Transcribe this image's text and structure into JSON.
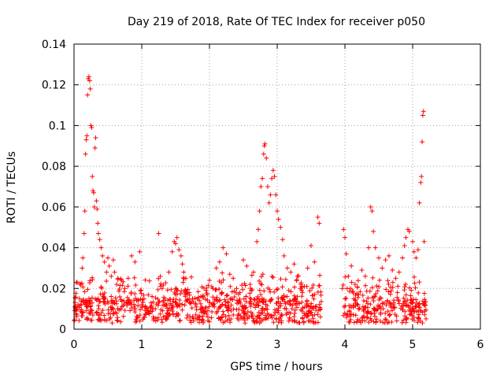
{
  "chart_data": {
    "type": "scatter",
    "title": "Day 219 of 2018, Rate Of TEC Index for receiver p050",
    "xlabel": "GPS time / hours",
    "ylabel": "ROTI / TECUs",
    "xlim": [
      0,
      6
    ],
    "ylim": [
      0,
      0.14
    ],
    "x_ticks": [
      0,
      1,
      2,
      3,
      4,
      5,
      6
    ],
    "x_tick_labels": [
      "0",
      "1",
      "2",
      "3",
      "4",
      "5",
      "6"
    ],
    "y_ticks": [
      0,
      0.02,
      0.04,
      0.06,
      0.08,
      0.1,
      0.12,
      0.14
    ],
    "y_tick_labels": [
      "0",
      "0.02",
      "0.04",
      "0.06",
      "0.08",
      "0.1",
      "0.12",
      "0.14"
    ],
    "grid": true,
    "marker": "+",
    "color": "#ff0000",
    "series": [
      {
        "name": "ROTI",
        "description_of_extent": "dense points from 0 to ~3.65 h and ~3.95 to ~5.2 h",
        "points": [
          [
            0.02,
            0.01
          ],
          [
            0.04,
            0.007
          ],
          [
            0.06,
            0.012
          ],
          [
            0.08,
            0.015
          ],
          [
            0.1,
            0.022
          ],
          [
            0.12,
            0.03
          ],
          [
            0.13,
            0.035
          ],
          [
            0.15,
            0.047
          ],
          [
            0.16,
            0.058
          ],
          [
            0.17,
            0.086
          ],
          [
            0.18,
            0.093
          ],
          [
            0.19,
            0.095
          ],
          [
            0.2,
            0.115
          ],
          [
            0.21,
            0.123
          ],
          [
            0.22,
            0.124
          ],
          [
            0.23,
            0.122
          ],
          [
            0.24,
            0.118
          ],
          [
            0.25,
            0.1
          ],
          [
            0.26,
            0.099
          ],
          [
            0.27,
            0.075
          ],
          [
            0.28,
            0.068
          ],
          [
            0.29,
            0.067
          ],
          [
            0.3,
            0.06
          ],
          [
            0.31,
            0.089
          ],
          [
            0.32,
            0.094
          ],
          [
            0.33,
            0.063
          ],
          [
            0.34,
            0.059
          ],
          [
            0.35,
            0.052
          ],
          [
            0.36,
            0.047
          ],
          [
            0.38,
            0.044
          ],
          [
            0.4,
            0.04
          ],
          [
            0.42,
            0.036
          ],
          [
            0.45,
            0.033
          ],
          [
            0.48,
            0.028
          ],
          [
            0.5,
            0.035
          ],
          [
            0.52,
            0.031
          ],
          [
            0.55,
            0.026
          ],
          [
            0.58,
            0.034
          ],
          [
            0.6,
            0.028
          ],
          [
            0.63,
            0.022
          ],
          [
            0.65,
            0.025
          ],
          [
            0.7,
            0.024
          ],
          [
            0.75,
            0.02
          ],
          [
            0.8,
            0.025
          ],
          [
            0.85,
            0.036
          ],
          [
            0.9,
            0.033
          ],
          [
            0.95,
            0.014
          ],
          [
            0.97,
            0.038
          ],
          [
            1.0,
            0.012
          ],
          [
            1.05,
            0.011
          ],
          [
            1.1,
            0.008
          ],
          [
            1.2,
            0.01
          ],
          [
            1.25,
            0.047
          ],
          [
            1.3,
            0.02
          ],
          [
            1.35,
            0.012
          ],
          [
            1.4,
            0.028
          ],
          [
            1.45,
            0.038
          ],
          [
            1.48,
            0.043
          ],
          [
            1.5,
            0.042
          ],
          [
            1.52,
            0.045
          ],
          [
            1.55,
            0.039
          ],
          [
            1.58,
            0.036
          ],
          [
            1.6,
            0.032
          ],
          [
            1.62,
            0.028
          ],
          [
            1.65,
            0.025
          ],
          [
            1.7,
            0.018
          ],
          [
            1.75,
            0.015
          ],
          [
            1.8,
            0.012
          ],
          [
            1.85,
            0.014
          ],
          [
            1.9,
            0.016
          ],
          [
            1.95,
            0.019
          ],
          [
            2.0,
            0.024
          ],
          [
            2.05,
            0.02
          ],
          [
            2.1,
            0.03
          ],
          [
            2.15,
            0.033
          ],
          [
            2.2,
            0.04
          ],
          [
            2.25,
            0.037
          ],
          [
            2.3,
            0.027
          ],
          [
            2.35,
            0.025
          ],
          [
            2.4,
            0.02
          ],
          [
            2.45,
            0.018
          ],
          [
            2.5,
            0.034
          ],
          [
            2.55,
            0.031
          ],
          [
            2.6,
            0.022
          ],
          [
            2.65,
            0.028
          ],
          [
            2.7,
            0.043
          ],
          [
            2.72,
            0.049
          ],
          [
            2.74,
            0.058
          ],
          [
            2.76,
            0.07
          ],
          [
            2.78,
            0.074
          ],
          [
            2.8,
            0.086
          ],
          [
            2.81,
            0.09
          ],
          [
            2.82,
            0.091
          ],
          [
            2.84,
            0.084
          ],
          [
            2.86,
            0.07
          ],
          [
            2.88,
            0.062
          ],
          [
            2.9,
            0.066
          ],
          [
            2.92,
            0.074
          ],
          [
            2.94,
            0.078
          ],
          [
            2.96,
            0.075
          ],
          [
            2.98,
            0.066
          ],
          [
            3.0,
            0.058
          ],
          [
            3.02,
            0.054
          ],
          [
            3.05,
            0.05
          ],
          [
            3.08,
            0.044
          ],
          [
            3.1,
            0.036
          ],
          [
            3.15,
            0.03
          ],
          [
            3.2,
            0.028
          ],
          [
            3.25,
            0.032
          ],
          [
            3.3,
            0.026
          ],
          [
            3.35,
            0.022
          ],
          [
            3.4,
            0.021
          ],
          [
            3.45,
            0.03
          ],
          [
            3.5,
            0.041
          ],
          [
            3.55,
            0.033
          ],
          [
            3.6,
            0.055
          ],
          [
            3.62,
            0.052
          ],
          [
            3.64,
            0.01
          ],
          [
            3.98,
            0.049
          ],
          [
            4.0,
            0.045
          ],
          [
            4.02,
            0.037
          ],
          [
            4.05,
            0.026
          ],
          [
            4.08,
            0.02
          ],
          [
            4.1,
            0.023
          ],
          [
            4.15,
            0.022
          ],
          [
            4.2,
            0.017
          ],
          [
            4.25,
            0.029
          ],
          [
            4.3,
            0.026
          ],
          [
            4.35,
            0.04
          ],
          [
            4.38,
            0.06
          ],
          [
            4.4,
            0.058
          ],
          [
            4.42,
            0.048
          ],
          [
            4.45,
            0.04
          ],
          [
            4.5,
            0.035
          ],
          [
            4.55,
            0.03
          ],
          [
            4.6,
            0.034
          ],
          [
            4.65,
            0.036
          ],
          [
            4.7,
            0.029
          ],
          [
            4.75,
            0.025
          ],
          [
            4.8,
            0.028
          ],
          [
            4.85,
            0.035
          ],
          [
            4.88,
            0.041
          ],
          [
            4.9,
            0.045
          ],
          [
            4.93,
            0.049
          ],
          [
            4.95,
            0.048
          ],
          [
            5.0,
            0.043
          ],
          [
            5.02,
            0.038
          ],
          [
            5.05,
            0.035
          ],
          [
            5.08,
            0.039
          ],
          [
            5.1,
            0.062
          ],
          [
            5.12,
            0.072
          ],
          [
            5.13,
            0.075
          ],
          [
            5.14,
            0.092
          ],
          [
            5.15,
            0.105
          ],
          [
            5.16,
            0.107
          ],
          [
            5.17,
            0.043
          ],
          [
            5.18,
            0.012
          ]
        ]
      }
    ]
  }
}
